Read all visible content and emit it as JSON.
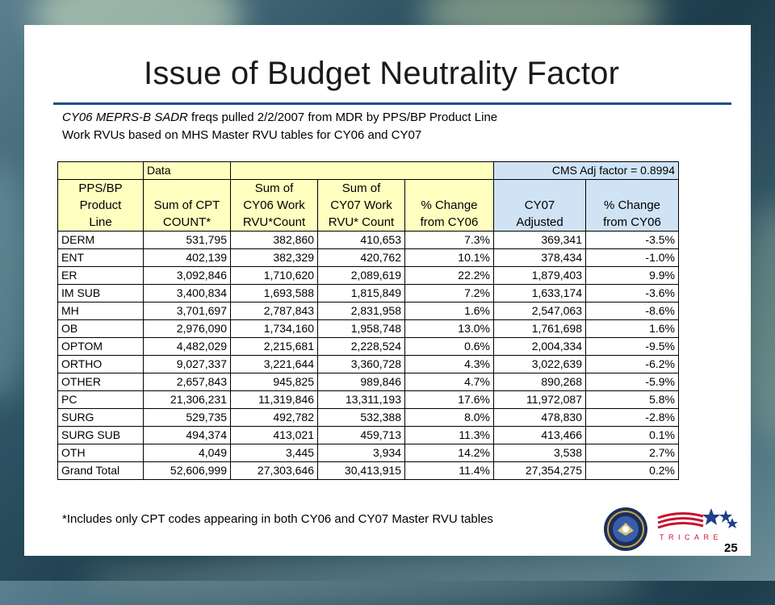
{
  "slide": {
    "title": "Issue of Budget Neutrality Factor",
    "subtitle_line1_italic": "CY06 MEPRS-B SADR",
    "subtitle_line1_rest": " freqs pulled 2/2/2007 from MDR by PPS/BP Product Line",
    "subtitle_line2": "Work RVUs based on MHS Master RVU tables for CY06 and CY07",
    "footnote": "*Includes only CPT codes appearing in both CY06 and CY07 Master RVU tables",
    "page_number": "25",
    "logo_text": "TRICARE"
  },
  "table": {
    "data_label": "Data",
    "cms_label": "CMS Adj factor = 0.8994",
    "headers": [
      [
        "PPS/BP",
        "Product",
        "Line"
      ],
      [
        "",
        "Sum of CPT",
        "COUNT*"
      ],
      [
        "Sum of",
        "CY06 Work",
        "RVU*Count"
      ],
      [
        "Sum of",
        "CY07 Work",
        "RVU* Count"
      ],
      [
        "",
        "% Change",
        "from CY06"
      ],
      [
        "",
        "CY07",
        "Adjusted"
      ],
      [
        "",
        "% Change",
        "from CY06"
      ]
    ],
    "rows": [
      [
        "DERM",
        "531,795",
        "382,860",
        "410,653",
        "7.3%",
        "369,341",
        "-3.5%"
      ],
      [
        "ENT",
        "402,139",
        "382,329",
        "420,762",
        "10.1%",
        "378,434",
        "-1.0%"
      ],
      [
        "ER",
        "3,092,846",
        "1,710,620",
        "2,089,619",
        "22.2%",
        "1,879,403",
        "9.9%"
      ],
      [
        "IM SUB",
        "3,400,834",
        "1,693,588",
        "1,815,849",
        "7.2%",
        "1,633,174",
        "-3.6%"
      ],
      [
        "MH",
        "3,701,697",
        "2,787,843",
        "2,831,958",
        "1.6%",
        "2,547,063",
        "-8.6%"
      ],
      [
        "OB",
        "2,976,090",
        "1,734,160",
        "1,958,748",
        "13.0%",
        "1,761,698",
        "1.6%"
      ],
      [
        "OPTOM",
        "4,482,029",
        "2,215,681",
        "2,228,524",
        "0.6%",
        "2,004,334",
        "-9.5%"
      ],
      [
        "ORTHO",
        "9,027,337",
        "3,221,644",
        "3,360,728",
        "4.3%",
        "3,022,639",
        "-6.2%"
      ],
      [
        "OTHER",
        "2,657,843",
        "945,825",
        "989,846",
        "4.7%",
        "890,268",
        "-5.9%"
      ],
      [
        "PC",
        "21,306,231",
        "11,319,846",
        "13,311,193",
        "17.6%",
        "11,972,087",
        "5.8%"
      ],
      [
        "SURG",
        "529,735",
        "492,782",
        "532,388",
        "8.0%",
        "478,830",
        "-2.8%"
      ],
      [
        "SURG SUB",
        "494,374",
        "413,021",
        "459,713",
        "11.3%",
        "413,466",
        "0.1%"
      ],
      [
        "OTH",
        "4,049",
        "3,445",
        "3,934",
        "14.2%",
        "3,538",
        "2.7%"
      ],
      [
        "Grand Total",
        "52,606,999",
        "27,303,646",
        "30,413,915",
        "11.4%",
        "27,354,275",
        "0.2%"
      ]
    ]
  },
  "colors": {
    "header_yellow": "#ffffc0",
    "header_blue": "#cfe3f5",
    "title_rule": "#1f4e8c"
  }
}
